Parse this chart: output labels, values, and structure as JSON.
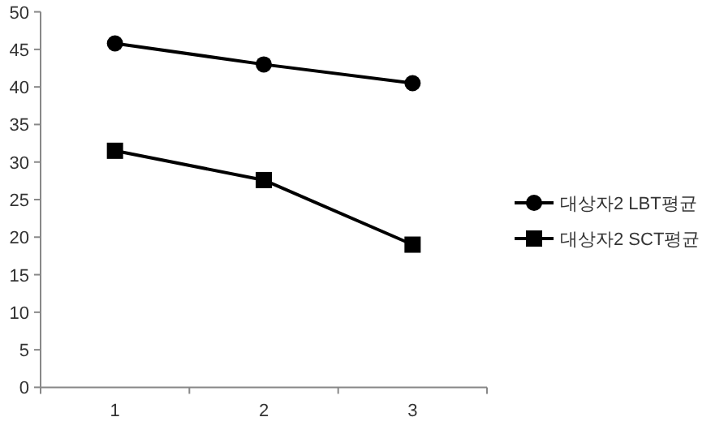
{
  "chart_data": {
    "type": "line",
    "categories": [
      "1",
      "2",
      "3"
    ],
    "ylim": [
      0,
      50
    ],
    "yticks": [
      0,
      5,
      10,
      15,
      20,
      25,
      30,
      35,
      40,
      45,
      50
    ],
    "legend": "right",
    "grid": false,
    "series": [
      {
        "name": "대상자2 LBT평균",
        "color": "#000000",
        "marker": "circle",
        "values": [
          45.8,
          43,
          40.5
        ]
      },
      {
        "name": "대상자2 SCT평균",
        "color": "#000000",
        "marker": "square",
        "values": [
          31.5,
          27.6,
          19
        ]
      }
    ]
  }
}
